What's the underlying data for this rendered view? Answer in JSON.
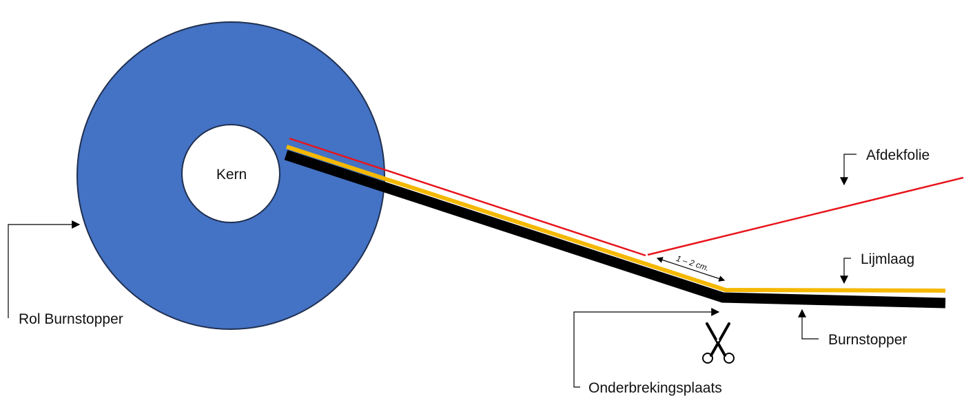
{
  "labels": {
    "core": "Kern",
    "roll": "Rol Burnstopper",
    "cover_film": "Afdekfolie",
    "adhesive_layer": "Lijmlaag",
    "burnstopper": "Burnstopper",
    "interruption_point": "Onderbrekingsplaats",
    "gap": "1 – 2 cm."
  },
  "colors": {
    "roll": "#4472c4",
    "roll_outline": "#1f2f4f",
    "core": "#ffffff",
    "cover_film": "#e8141b",
    "adhesive": "#f5b800",
    "burnstopper": "#000000"
  },
  "icons": {
    "cut_mark": "scissors-icon"
  }
}
